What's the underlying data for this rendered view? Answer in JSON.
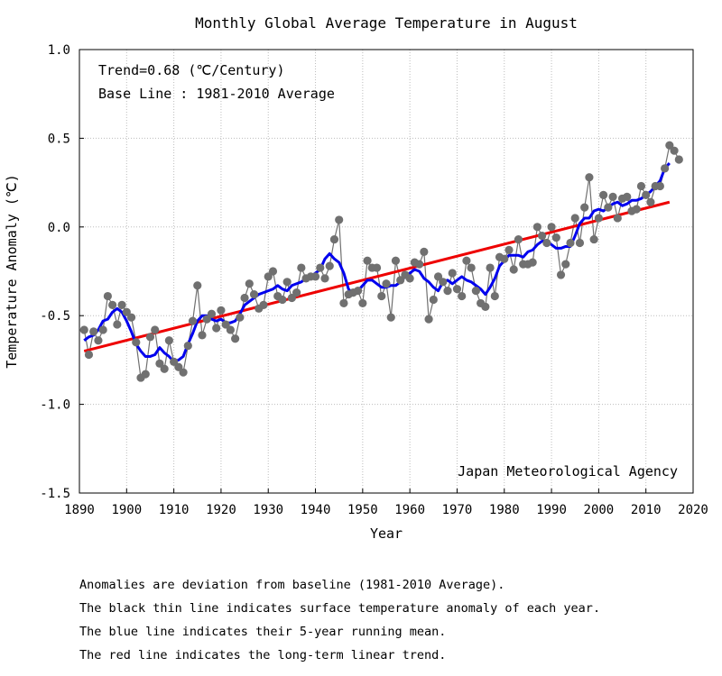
{
  "chart_data": {
    "type": "line",
    "title": "Monthly Global Average Temperature in August",
    "xlabel": "Year",
    "ylabel": "Temperature Anomaly (℃)",
    "xlim": [
      1890,
      2020
    ],
    "ylim": [
      -1.5,
      1.0
    ],
    "xticks": [
      "1890",
      "1900",
      "1910",
      "1920",
      "1930",
      "1940",
      "1950",
      "1960",
      "1970",
      "1980",
      "1990",
      "2000",
      "2010",
      "2020"
    ],
    "yticks": [
      "1.0",
      "0.5",
      "0.0",
      "-0.5",
      "-1.0",
      "-1.5"
    ],
    "grid": true,
    "annotations": {
      "trend": "Trend=0.68 (℃/Century)",
      "baseline": "Base Line : 1981-2010 Average",
      "source": "Japan Meteorological Agency"
    },
    "series": [
      {
        "kind": "annual_anomaly",
        "color": "#707070",
        "x": [
          1891,
          1892,
          1893,
          1894,
          1895,
          1896,
          1897,
          1898,
          1899,
          1900,
          1901,
          1902,
          1903,
          1904,
          1905,
          1906,
          1907,
          1908,
          1909,
          1910,
          1911,
          1912,
          1913,
          1914,
          1915,
          1916,
          1917,
          1918,
          1919,
          1920,
          1921,
          1922,
          1923,
          1924,
          1925,
          1926,
          1927,
          1928,
          1929,
          1930,
          1931,
          1932,
          1933,
          1934,
          1935,
          1936,
          1937,
          1938,
          1939,
          1940,
          1941,
          1942,
          1943,
          1944,
          1945,
          1946,
          1947,
          1948,
          1949,
          1950,
          1951,
          1952,
          1953,
          1954,
          1955,
          1956,
          1957,
          1958,
          1959,
          1960,
          1961,
          1962,
          1963,
          1964,
          1965,
          1966,
          1967,
          1968,
          1969,
          1970,
          1971,
          1972,
          1973,
          1974,
          1975,
          1976,
          1977,
          1978,
          1979,
          1980,
          1981,
          1982,
          1983,
          1984,
          1985,
          1986,
          1987,
          1988,
          1989,
          1990,
          1991,
          1992,
          1993,
          1994,
          1995,
          1996,
          1997,
          1998,
          1999,
          2000,
          2001,
          2002,
          2003,
          2004,
          2005,
          2006,
          2007,
          2008,
          2009,
          2010,
          2011,
          2012,
          2013,
          2014,
          2015,
          2016,
          2017
        ],
        "y": [
          -0.58,
          -0.72,
          -0.59,
          -0.64,
          -0.58,
          -0.39,
          -0.44,
          -0.55,
          -0.44,
          -0.48,
          -0.51,
          -0.65,
          -0.85,
          -0.83,
          -0.62,
          -0.58,
          -0.77,
          -0.8,
          -0.64,
          -0.76,
          -0.79,
          -0.82,
          -0.67,
          -0.53,
          -0.33,
          -0.61,
          -0.52,
          -0.49,
          -0.57,
          -0.47,
          -0.55,
          -0.58,
          -0.63,
          -0.51,
          -0.4,
          -0.32,
          -0.38,
          -0.46,
          -0.44,
          -0.28,
          -0.25,
          -0.39,
          -0.41,
          -0.31,
          -0.4,
          -0.37,
          -0.23,
          -0.29,
          -0.28,
          -0.28,
          -0.23,
          -0.29,
          -0.22,
          -0.07,
          0.04,
          -0.43,
          -0.38,
          -0.37,
          -0.36,
          -0.43,
          -0.19,
          -0.23,
          -0.23,
          -0.39,
          -0.32,
          -0.51,
          -0.19,
          -0.3,
          -0.27,
          -0.29,
          -0.2,
          -0.21,
          -0.14,
          -0.52,
          -0.41,
          -0.28,
          -0.31,
          -0.36,
          -0.26,
          -0.35,
          -0.39,
          -0.19,
          -0.23,
          -0.36,
          -0.43,
          -0.45,
          -0.23,
          -0.39,
          -0.17,
          -0.18,
          -0.13,
          -0.24,
          -0.07,
          -0.21,
          -0.21,
          -0.2,
          0.0,
          -0.05,
          -0.09,
          0.0,
          -0.06,
          -0.27,
          -0.21,
          -0.09,
          0.05,
          -0.09,
          0.11,
          0.28,
          -0.07,
          0.05,
          0.18,
          0.11,
          0.17,
          0.05,
          0.16,
          0.17,
          0.09,
          0.1,
          0.23,
          0.18,
          0.14,
          0.23,
          0.23,
          0.33,
          0.46,
          0.43,
          0.38
        ]
      },
      {
        "kind": "5yr_running_mean",
        "color": "#0000ee",
        "x": [
          1891,
          1892,
          1893,
          1894,
          1895,
          1896,
          1897,
          1898,
          1899,
          1900,
          1901,
          1902,
          1903,
          1904,
          1905,
          1906,
          1907,
          1908,
          1909,
          1910,
          1911,
          1912,
          1913,
          1914,
          1915,
          1916,
          1917,
          1918,
          1919,
          1920,
          1921,
          1922,
          1923,
          1924,
          1925,
          1926,
          1927,
          1928,
          1929,
          1930,
          1931,
          1932,
          1933,
          1934,
          1935,
          1936,
          1937,
          1938,
          1939,
          1940,
          1941,
          1942,
          1943,
          1944,
          1945,
          1946,
          1947,
          1948,
          1949,
          1950,
          1951,
          1952,
          1953,
          1954,
          1955,
          1956,
          1957,
          1958,
          1959,
          1960,
          1961,
          1962,
          1963,
          1964,
          1965,
          1966,
          1967,
          1968,
          1969,
          1970,
          1971,
          1972,
          1973,
          1974,
          1975,
          1976,
          1977,
          1978,
          1979,
          1980,
          1981,
          1982,
          1983,
          1984,
          1985,
          1986,
          1987,
          1988,
          1989,
          1990,
          1991,
          1992,
          1993,
          1994,
          1995,
          1996,
          1997,
          1998,
          1999,
          2000,
          2001,
          2002,
          2003,
          2004,
          2005,
          2006,
          2007,
          2008,
          2009,
          2010,
          2011,
          2012,
          2013,
          2014,
          2015
        ],
        "y": [
          -0.64,
          -0.62,
          -0.61,
          -0.58,
          -0.53,
          -0.52,
          -0.48,
          -0.46,
          -0.48,
          -0.53,
          -0.59,
          -0.66,
          -0.7,
          -0.73,
          -0.73,
          -0.72,
          -0.68,
          -0.71,
          -0.73,
          -0.76,
          -0.75,
          -0.73,
          -0.66,
          -0.6,
          -0.53,
          -0.5,
          -0.5,
          -0.52,
          -0.53,
          -0.52,
          -0.54,
          -0.54,
          -0.53,
          -0.49,
          -0.44,
          -0.42,
          -0.4,
          -0.38,
          -0.37,
          -0.36,
          -0.35,
          -0.33,
          -0.35,
          -0.36,
          -0.33,
          -0.32,
          -0.31,
          -0.29,
          -0.28,
          -0.26,
          -0.24,
          -0.18,
          -0.15,
          -0.18,
          -0.2,
          -0.26,
          -0.35,
          -0.38,
          -0.36,
          -0.33,
          -0.3,
          -0.3,
          -0.32,
          -0.34,
          -0.34,
          -0.33,
          -0.33,
          -0.31,
          -0.28,
          -0.26,
          -0.24,
          -0.25,
          -0.29,
          -0.31,
          -0.34,
          -0.36,
          -0.31,
          -0.3,
          -0.32,
          -0.3,
          -0.28,
          -0.3,
          -0.31,
          -0.33,
          -0.35,
          -0.38,
          -0.34,
          -0.29,
          -0.22,
          -0.19,
          -0.16,
          -0.16,
          -0.16,
          -0.17,
          -0.14,
          -0.13,
          -0.1,
          -0.08,
          -0.08,
          -0.1,
          -0.12,
          -0.12,
          -0.11,
          -0.11,
          -0.05,
          0.02,
          0.05,
          0.05,
          0.09,
          0.1,
          0.09,
          0.11,
          0.13,
          0.14,
          0.12,
          0.13,
          0.15,
          0.15,
          0.16,
          0.18,
          0.2,
          0.23,
          0.26,
          0.33,
          0.36
        ]
      },
      {
        "kind": "linear_trend",
        "color": "#ee0000",
        "x": [
          1891,
          2015
        ],
        "y": [
          -0.7,
          0.14
        ]
      }
    ]
  },
  "notes": [
    "Anomalies are deviation from baseline (1981-2010 Average).",
    "The black thin line indicates surface temperature anomaly of each year.",
    "The blue line indicates their 5-year running mean.",
    "The red line indicates the long-term linear trend."
  ]
}
